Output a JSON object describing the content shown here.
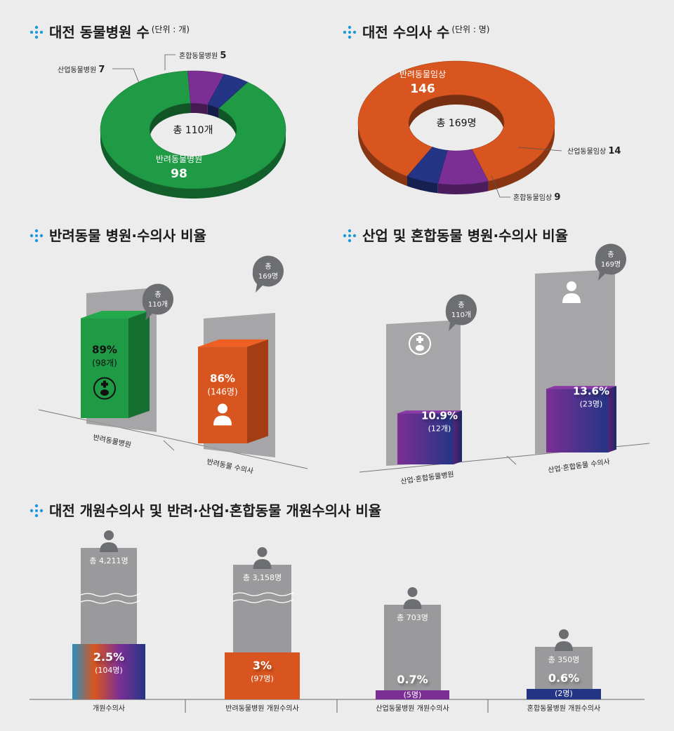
{
  "colors": {
    "background": "#ececec",
    "green": "#1f9a45",
    "green_dark": "#156f31",
    "orange": "#d9551f",
    "orange_dark": "#a53d14",
    "purple": "#7b2f95",
    "navy": "#243585",
    "gray": "#9a9a9c",
    "bullet": "#1a9ad6"
  },
  "sections": {
    "hospitals": {
      "title": "대전 동물병원 수",
      "unit": "(단위 : 개)"
    },
    "vets": {
      "title": "대전 수의사 수",
      "unit": "(단위 : 명)"
    },
    "companion": {
      "title": "반려동물 병원·수의사 비율"
    },
    "industrial": {
      "title": "산업 및 혼합동물 병원·수의사 비율"
    },
    "practicing": {
      "title": "대전 개원수의사 및 반려·산업·혼합동물 개원수의사 비율"
    }
  },
  "chart_data": [
    {
      "type": "pie",
      "title": "대전 동물병원 수",
      "unit": "(단위 : 개)",
      "center_label": "총 110개",
      "slices": [
        {
          "label": "반려동물병원",
          "value": 98
        },
        {
          "label": "산업동물병원",
          "value": 7
        },
        {
          "label": "혼합동물병원",
          "value": 5
        }
      ]
    },
    {
      "type": "pie",
      "title": "대전 수의사 수",
      "unit": "(단위 : 명)",
      "center_label": "총 169명",
      "slices": [
        {
          "label": "반려동물임상",
          "value": 146
        },
        {
          "label": "산업동물임상",
          "value": 14
        },
        {
          "label": "혼합동물임상",
          "value": 9
        }
      ]
    },
    {
      "type": "bar",
      "title": "반려동물 병원·수의사 비율",
      "categories": [
        "반려동물병원",
        "반려동물 수의사"
      ],
      "values": [
        89,
        86
      ],
      "percent_labels": [
        "89%",
        "86%"
      ],
      "count_labels": [
        "(98개)",
        "(146명)"
      ],
      "totals": [
        "총 110개",
        "총 169명"
      ],
      "ylim": [
        0,
        100
      ]
    },
    {
      "type": "bar",
      "title": "산업 및 혼합동물 병원·수의사 비율",
      "categories": [
        "산업·혼합동물병원",
        "산업·혼합동물 수의사"
      ],
      "values": [
        10.9,
        13.6
      ],
      "percent_labels": [
        "10.9%",
        "13.6%"
      ],
      "count_labels": [
        "(12개)",
        "(23명)"
      ],
      "totals": [
        "총 110개",
        "총 169명"
      ],
      "ylim": [
        0,
        100
      ]
    },
    {
      "type": "bar",
      "title": "대전 개원수의사 및 반려·산업·혼합동물 개원수의사 비율",
      "categories": [
        "개원수의사",
        "반려동물병원 개원수의사",
        "산업동물병원 개원수의사",
        "혼합동물병원 개원수의사"
      ],
      "values": [
        104,
        97,
        5,
        2
      ],
      "totals": [
        4211,
        3158,
        703,
        350
      ],
      "total_labels": [
        "총 4,211명",
        "총 3,158명",
        "총 703명",
        "총 350명"
      ],
      "percent_labels": [
        "2.5%",
        "3%",
        "0.7%",
        "0.6%"
      ],
      "count_labels": [
        "(104명)",
        "(97명)",
        "(5명)",
        "(2명)"
      ]
    }
  ]
}
